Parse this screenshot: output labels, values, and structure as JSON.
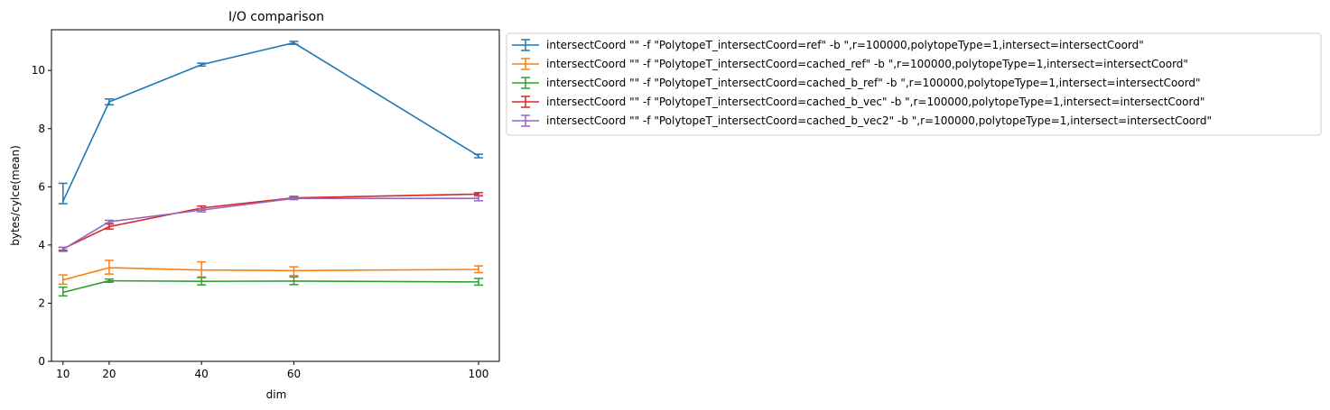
{
  "chart_data": {
    "type": "line",
    "title": "I/O comparison",
    "xlabel": "dim",
    "ylabel": "bytes/cylce(mean)",
    "x": [
      10,
      20,
      40,
      60,
      100
    ],
    "xticks": [
      "10",
      "20",
      "40",
      "60",
      "100"
    ],
    "yticks": [
      "0",
      "2",
      "4",
      "6",
      "8",
      "10"
    ],
    "xlim": [
      7.5,
      104.5
    ],
    "ylim": [
      0,
      11.4
    ],
    "grid": false,
    "legend_position": "outside-top-right",
    "error_bars": true,
    "series": [
      {
        "name": "intersectCoord \"\" -f \"PolytopeT_intersectCoord=ref\" -b \",r=100000,polytopeType=1,intersect=intersectCoord\"",
        "color": "#1f77b4",
        "values": [
          5.5,
          8.92,
          10.2,
          10.95,
          7.06
        ],
        "err_low": [
          5.42,
          8.82,
          10.15,
          10.9,
          7.0
        ],
        "err_high": [
          6.12,
          9.02,
          10.25,
          11.0,
          7.12
        ]
      },
      {
        "name": "intersectCoord \"\" -f \"PolytopeT_intersectCoord=cached_ref\" -b \",r=100000,polytopeType=1,intersect=intersectCoord\"",
        "color": "#ff7f0e",
        "values": [
          2.8,
          3.22,
          3.14,
          3.12,
          3.16
        ],
        "err_low": [
          2.65,
          3.0,
          2.9,
          2.95,
          3.05
        ],
        "err_high": [
          2.97,
          3.47,
          3.42,
          3.25,
          3.28
        ]
      },
      {
        "name": "intersectCoord \"\" -f \"PolytopeT_intersectCoord=cached_b_ref\" -b \",r=100000,polytopeType=1,intersect=intersectCoord\"",
        "color": "#2ca02c",
        "values": [
          2.37,
          2.77,
          2.75,
          2.76,
          2.73
        ],
        "err_low": [
          2.25,
          2.72,
          2.63,
          2.64,
          2.62
        ],
        "err_high": [
          2.55,
          2.83,
          2.88,
          2.9,
          2.85
        ]
      },
      {
        "name": "intersectCoord \"\" -f \"PolytopeT_intersectCoord=cached_b_vec\" -b \",r=100000,polytopeType=1,intersect=intersectCoord\"",
        "color": "#d62728",
        "values": [
          3.87,
          4.63,
          5.27,
          5.62,
          5.75
        ],
        "err_low": [
          3.82,
          4.55,
          5.2,
          5.58,
          5.7
        ],
        "err_high": [
          3.92,
          4.72,
          5.34,
          5.67,
          5.8
        ]
      },
      {
        "name": "intersectCoord \"\" -f \"PolytopeT_intersectCoord=cached_b_vec2\" -b \",r=100000,polytopeType=1,intersect=intersectCoord\"",
        "color": "#9467bd",
        "values": [
          3.85,
          4.8,
          5.2,
          5.6,
          5.6
        ],
        "err_low": [
          3.78,
          4.75,
          5.14,
          5.56,
          5.52
        ],
        "err_high": [
          3.92,
          4.85,
          5.26,
          5.64,
          5.68
        ]
      }
    ]
  }
}
